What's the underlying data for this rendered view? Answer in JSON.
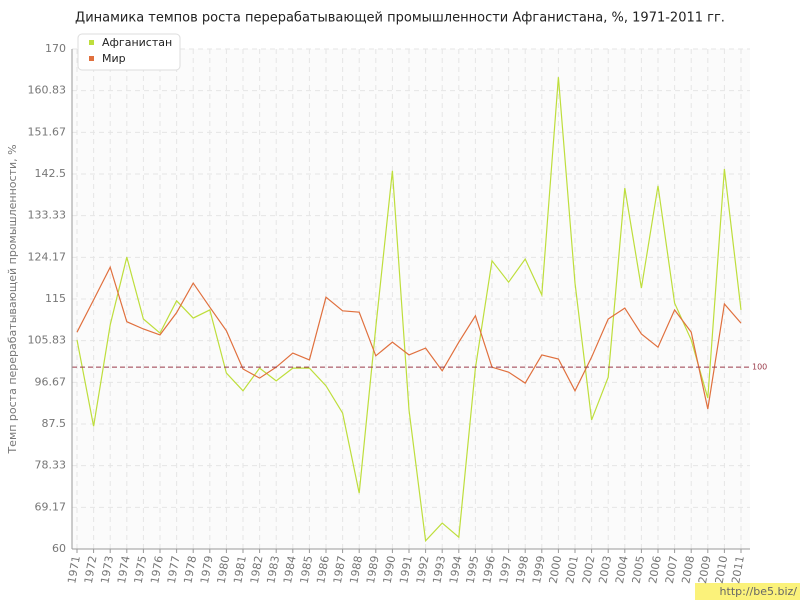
{
  "chart_data": {
    "type": "line",
    "title": "Динамика темпов роста перерабатывающей промышленности Афганистана, %, 1971-2011 гг.",
    "y_label": "Темп роста перерабатывающей промышленности, %",
    "categories": [
      "1971",
      "1972",
      "1973",
      "1974",
      "1975",
      "1976",
      "1977",
      "1978",
      "1979",
      "1980",
      "1981",
      "1982",
      "1983",
      "1984",
      "1985",
      "1986",
      "1987",
      "1988",
      "1989",
      "1990",
      "1991",
      "1992",
      "1993",
      "1994",
      "1995",
      "1996",
      "1997",
      "1998",
      "1999",
      "2000",
      "2001",
      "2002",
      "2003",
      "2004",
      "2005",
      "2006",
      "2007",
      "2008",
      "2009",
      "2010",
      "2011"
    ],
    "series": [
      {
        "name": "Афганистан",
        "color": "#bede3c",
        "values": [
          106,
          87,
          109.3,
          124.2,
          110.6,
          107.5,
          114.6,
          110.8,
          112.6,
          98.7,
          94.8,
          99.8,
          97,
          99.8,
          99.8,
          95.9,
          89.9,
          72.3,
          108.8,
          143.2,
          90.6,
          61.8,
          65.7,
          62.6,
          99.8,
          123.4,
          118.7,
          123.8,
          115.9,
          163.8,
          118.5,
          88.4,
          97.8,
          139.4,
          117.4,
          139.9,
          114.1,
          106,
          93.2,
          143.6,
          112.6
        ]
      },
      {
        "name": "Мир",
        "color": "#e0703e",
        "values": [
          107.7,
          114.8,
          122,
          110,
          108.4,
          107.1,
          112,
          118.5,
          113.2,
          108,
          99.6,
          97.6,
          100,
          103.1,
          101.6,
          115.4,
          112.4,
          112.1,
          102.5,
          105.5,
          102.7,
          104.2,
          99.2,
          105.5,
          111.3,
          100,
          98.9,
          96.5,
          102.7,
          101.8,
          94.8,
          102.2,
          110.6,
          113,
          107.3,
          104.4,
          112.6,
          107.7,
          90.8,
          113.9,
          109.7
        ]
      }
    ],
    "ylim": [
      60,
      170
    ],
    "yticks": [
      60,
      69.17,
      78.33,
      87.5,
      96.67,
      105.83,
      115,
      124.17,
      133.33,
      142.5,
      151.67,
      160.83,
      170
    ],
    "reference_line": 100,
    "reference_color": "#9b3b4a",
    "grid": true,
    "legend": "top-left",
    "watermark": "http://be5.biz/"
  }
}
